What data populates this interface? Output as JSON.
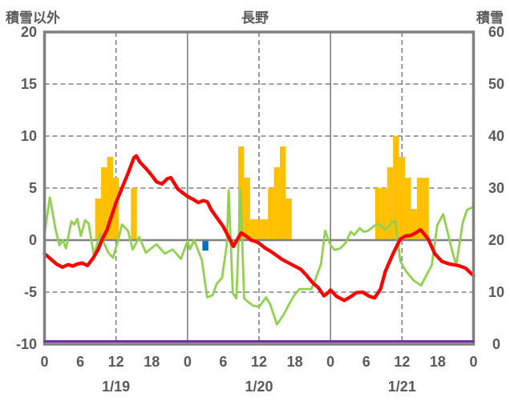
{
  "header": {
    "left_axis_title": "積雪以外",
    "chart_title": "長野",
    "right_axis_title": "積雪"
  },
  "chart_data": {
    "type": "composite",
    "title": "長野",
    "left_axis": {
      "label": "積雪以外",
      "min": -10,
      "max": 20,
      "ticks": [
        20,
        15,
        10,
        5,
        0,
        -5,
        -10
      ]
    },
    "right_axis": {
      "label": "積雪",
      "min": 0,
      "max": 60,
      "ticks": [
        60,
        50,
        40,
        30,
        20,
        10,
        0
      ]
    },
    "x_axis": {
      "total_hours": 72,
      "tick_step_hours": 6,
      "hour_labels": [
        "0",
        "6",
        "12",
        "18",
        "0",
        "6",
        "12",
        "18",
        "0",
        "6",
        "12",
        "18",
        "0"
      ],
      "date_labels": [
        "1/19",
        "1/20",
        "1/21"
      ]
    },
    "gridlines": {
      "horizontal_dashed_values": [
        15,
        10,
        5,
        -5
      ],
      "horizontal_solid_values": [
        0
      ],
      "vertical_solid_hours": [
        24,
        48
      ],
      "vertical_dashed_hours": [
        12,
        36,
        60
      ]
    },
    "colors": {
      "bars_orange": "#FFC000",
      "bar_blue": "#0070C0",
      "line_red": "#FF0000",
      "line_green": "#92D050",
      "line_purple": "#7030A0",
      "grid_gray": "#808080",
      "text_gray": "#595959"
    },
    "series": {
      "sunshine_bars": {
        "name": "orange-bars",
        "color": "#FFC000",
        "hour_values": [
          [
            9,
            4
          ],
          [
            10,
            7
          ],
          [
            11,
            8
          ],
          [
            12,
            6
          ],
          [
            15,
            5
          ],
          [
            33,
            9
          ],
          [
            34,
            6
          ],
          [
            35,
            2
          ],
          [
            36,
            2
          ],
          [
            37,
            2
          ],
          [
            38,
            5
          ],
          [
            39,
            7
          ],
          [
            40,
            9
          ],
          [
            41,
            4
          ],
          [
            56,
            5
          ],
          [
            57,
            5
          ],
          [
            58,
            7
          ],
          [
            59,
            10
          ],
          [
            60,
            8
          ],
          [
            61,
            6
          ],
          [
            62,
            3
          ],
          [
            63,
            6
          ],
          [
            64,
            6
          ]
        ]
      },
      "precip_bar": {
        "name": "blue-bar",
        "color": "#0070C0",
        "hour_values": [
          [
            27,
            -1
          ]
        ]
      },
      "temperature": {
        "name": "red-line",
        "color": "#FF0000",
        "points": [
          [
            0,
            -1.3
          ],
          [
            1,
            -1.8
          ],
          [
            2,
            -2.3
          ],
          [
            3,
            -2.6
          ],
          [
            4,
            -2.35
          ],
          [
            4.7,
            -2.5
          ],
          [
            5.5,
            -2.3
          ],
          [
            6.3,
            -2.2
          ],
          [
            7.2,
            -2.45
          ],
          [
            8.2,
            -1.7
          ],
          [
            9,
            -0.9
          ],
          [
            9.7,
            0.1
          ],
          [
            10.5,
            1.0
          ],
          [
            11,
            1.9
          ],
          [
            12,
            3.6
          ],
          [
            13,
            5.0
          ],
          [
            14,
            6.4
          ],
          [
            15,
            7.9
          ],
          [
            15.4,
            8.1
          ],
          [
            16,
            7.5
          ],
          [
            17,
            6.9
          ],
          [
            17.9,
            6.3
          ],
          [
            18.8,
            5.6
          ],
          [
            19.7,
            5.4
          ],
          [
            20.6,
            5.9
          ],
          [
            21.2,
            6.0
          ],
          [
            22.4,
            4.9
          ],
          [
            23.3,
            4.5
          ],
          [
            24,
            4.2
          ],
          [
            25,
            3.9
          ],
          [
            25.8,
            3.6
          ],
          [
            26.6,
            3.8
          ],
          [
            27.3,
            3.7
          ],
          [
            28,
            2.9
          ],
          [
            29,
            2.1
          ],
          [
            30,
            1.3
          ],
          [
            30.9,
            0.3
          ],
          [
            31.7,
            -0.6
          ],
          [
            32.5,
            0.2
          ],
          [
            33,
            0.7
          ],
          [
            33.8,
            0.4
          ],
          [
            34.7,
            0.0
          ],
          [
            35.5,
            -0.15
          ],
          [
            36,
            -0.3
          ],
          [
            37,
            -0.75
          ],
          [
            38,
            -1.1
          ],
          [
            39,
            -1.5
          ],
          [
            40,
            -1.9
          ],
          [
            41,
            -2.2
          ],
          [
            42,
            -2.5
          ],
          [
            43,
            -2.8
          ],
          [
            44,
            -3.4
          ],
          [
            45,
            -4.1
          ],
          [
            46,
            -4.6
          ],
          [
            46.9,
            -5.35
          ],
          [
            47.5,
            -5.1
          ],
          [
            48,
            -4.8
          ],
          [
            49,
            -5.4
          ],
          [
            50.3,
            -5.8
          ],
          [
            51.5,
            -5.4
          ],
          [
            52.3,
            -5.05
          ],
          [
            53.4,
            -5.0
          ],
          [
            54.5,
            -5.4
          ],
          [
            55.4,
            -5.55
          ],
          [
            56.4,
            -4.7
          ],
          [
            57.2,
            -3.0
          ],
          [
            58.5,
            -1.3
          ],
          [
            59.7,
            0.1
          ],
          [
            60.6,
            0.4
          ],
          [
            61.5,
            0.45
          ],
          [
            62.3,
            0.7
          ],
          [
            63.1,
            1.0
          ],
          [
            64.4,
            0.1
          ],
          [
            65.5,
            -1.3
          ],
          [
            66.7,
            -2.05
          ],
          [
            68,
            -2.3
          ],
          [
            69.5,
            -2.45
          ],
          [
            70.7,
            -2.7
          ],
          [
            71.3,
            -3.05
          ],
          [
            72,
            -3.4
          ]
        ]
      },
      "green_line": {
        "name": "green-line",
        "color": "#92D050",
        "points": [
          [
            0,
            0.6
          ],
          [
            0.9,
            4.1
          ],
          [
            1.8,
            1.2
          ],
          [
            2.5,
            -0.5
          ],
          [
            3.1,
            0.0
          ],
          [
            3.6,
            -0.8
          ],
          [
            4.5,
            1.8
          ],
          [
            5.0,
            1.5
          ],
          [
            5.5,
            2.05
          ],
          [
            6.1,
            0.4
          ],
          [
            6.8,
            1.9
          ],
          [
            7.4,
            1.6
          ],
          [
            8.3,
            -1.5
          ],
          [
            9.3,
            0.6
          ],
          [
            10,
            -0.3
          ],
          [
            10.7,
            -1.2
          ],
          [
            11.5,
            -1.7
          ],
          [
            12.5,
            0.3
          ],
          [
            13,
            1.5
          ],
          [
            14,
            0.9
          ],
          [
            14.8,
            -0.9
          ],
          [
            15.9,
            0.3
          ],
          [
            17,
            -1.2
          ],
          [
            18.8,
            -0.4
          ],
          [
            20.2,
            -1.3
          ],
          [
            21.5,
            -0.9
          ],
          [
            22.9,
            -1.8
          ],
          [
            24,
            -0.1
          ],
          [
            24.4,
            -0.9
          ],
          [
            25.1,
            0.0
          ],
          [
            26.4,
            -1.9
          ],
          [
            27.3,
            -5.5
          ],
          [
            28.2,
            -5.3
          ],
          [
            28.9,
            -4.2
          ],
          [
            29.8,
            -3.6
          ],
          [
            30.6,
            -0.4
          ],
          [
            30.9,
            4.8
          ],
          [
            31.6,
            -5.1
          ],
          [
            32.2,
            -5.6
          ],
          [
            32.9,
            4.9
          ],
          [
            33.5,
            -5.6
          ],
          [
            34.3,
            -6.0
          ],
          [
            35,
            -6.3
          ],
          [
            36,
            -6.4
          ],
          [
            37.2,
            -5.5
          ],
          [
            37.9,
            -6.2
          ],
          [
            39,
            -8.1
          ],
          [
            40.1,
            -7.2
          ],
          [
            41,
            -6.2
          ],
          [
            41.9,
            -5.3
          ],
          [
            42.8,
            -4.7
          ],
          [
            44.8,
            -4.7
          ],
          [
            45.5,
            -3.7
          ],
          [
            46.4,
            -2.3
          ],
          [
            47.1,
            0.9
          ],
          [
            48,
            -0.5
          ],
          [
            48.7,
            -0.95
          ],
          [
            49.6,
            -0.8
          ],
          [
            50.5,
            -0.3
          ],
          [
            51.4,
            0.8
          ],
          [
            52,
            0.5
          ],
          [
            52.9,
            1.15
          ],
          [
            53.6,
            0.8
          ],
          [
            54.3,
            0.9
          ],
          [
            55.4,
            1.4
          ],
          [
            56.1,
            1.55
          ],
          [
            57.2,
            1.0
          ],
          [
            58.3,
            1.7
          ],
          [
            58.9,
            1.8
          ],
          [
            59.7,
            -2.0
          ],
          [
            60.6,
            -2.95
          ],
          [
            62,
            -3.9
          ],
          [
            63.2,
            -4.35
          ],
          [
            65,
            -2.4
          ],
          [
            65.9,
            1.4
          ],
          [
            66.9,
            2.5
          ],
          [
            68.4,
            -1.0
          ],
          [
            69.1,
            -2.4
          ],
          [
            70.2,
            1.7
          ],
          [
            70.9,
            2.9
          ],
          [
            72,
            3.2
          ]
        ]
      },
      "snow_depth": {
        "name": "purple-line",
        "color": "#7030A0",
        "constant_right_axis_value": 0
      }
    }
  }
}
